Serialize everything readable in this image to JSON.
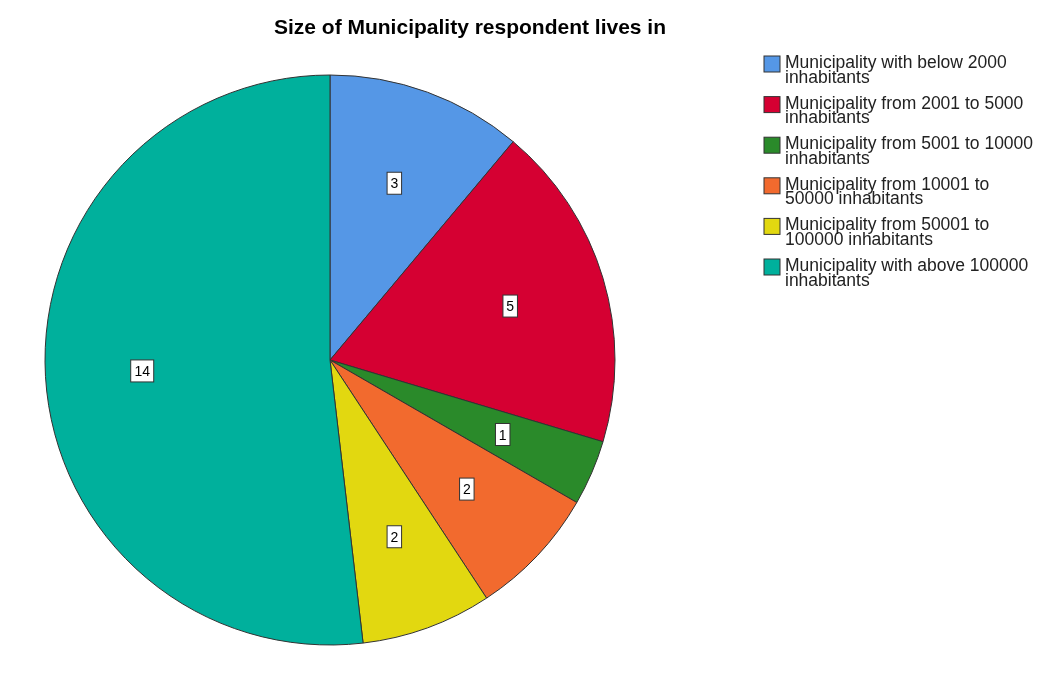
{
  "chart_data": {
    "type": "pie",
    "title": "Size of Municipality respondent lives in",
    "categories": [
      "Municipality with below 2000 inhabitants",
      "Municipality from 2001 to 5000 inhabitants",
      "Municipality from 5001 to 10000 inhabitants",
      "Municipality from 10001 to 50000 inhabitants",
      "Municipality from 50001 to 100000 inhabitants",
      "Municipality with above 100000 inhabitants"
    ],
    "values": [
      3,
      5,
      1,
      2,
      2,
      14
    ],
    "colors": [
      "#5597e6",
      "#d50032",
      "#2a8a2a",
      "#f26a2e",
      "#e2d810",
      "#00b09c"
    ],
    "data_labels": true,
    "legend": "right"
  }
}
